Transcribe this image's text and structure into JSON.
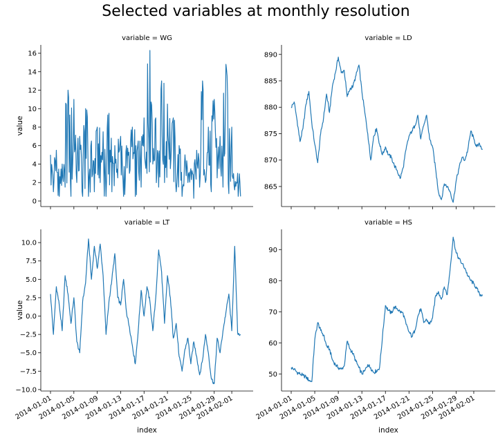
{
  "figure": {
    "title": "Selected variables at monthly resolution"
  },
  "chart_data": [
    {
      "type": "line",
      "title": "variable = WG",
      "xlabel": "",
      "ylabel": "value",
      "x_range": [
        "2014-01-01",
        "2014-02-03"
      ],
      "ylim": [
        -0.6,
        16.9
      ],
      "y_ticks": [
        0,
        2,
        4,
        6,
        8,
        10,
        12,
        14,
        16
      ],
      "y_tick_labels": [
        "0",
        "2",
        "4",
        "6",
        "8",
        "10",
        "12",
        "14",
        "16"
      ],
      "x_tick_labels": [],
      "color": "#1f77b4",
      "x": [
        "2014-01-01",
        "2014-01-01 12:00",
        "2014-01-02",
        "2014-01-02 12:00",
        "2014-01-03",
        "2014-01-03 12:00",
        "2014-01-04",
        "2014-01-04 12:00",
        "2014-01-05",
        "2014-01-05 12:00",
        "2014-01-06",
        "2014-01-06 12:00",
        "2014-01-07",
        "2014-01-07 12:00",
        "2014-01-08",
        "2014-01-08 12:00",
        "2014-01-09",
        "2014-01-09 12:00",
        "2014-01-10",
        "2014-01-10 12:00",
        "2014-01-11",
        "2014-01-11 12:00",
        "2014-01-12",
        "2014-01-12 12:00",
        "2014-01-13",
        "2014-01-13 12:00",
        "2014-01-14",
        "2014-01-14 12:00",
        "2014-01-15",
        "2014-01-15 12:00",
        "2014-01-16",
        "2014-01-16 12:00",
        "2014-01-17",
        "2014-01-17 12:00",
        "2014-01-18",
        "2014-01-18 12:00",
        "2014-01-19",
        "2014-01-19 12:00",
        "2014-01-20",
        "2014-01-20 12:00",
        "2014-01-21",
        "2014-01-21 12:00",
        "2014-01-22",
        "2014-01-22 12:00",
        "2014-01-23",
        "2014-01-23 12:00",
        "2014-01-24",
        "2014-01-24 12:00",
        "2014-01-25",
        "2014-01-25 12:00",
        "2014-01-26",
        "2014-01-26 12:00",
        "2014-01-27",
        "2014-01-27 12:00",
        "2014-01-28",
        "2014-01-28 12:00",
        "2014-01-29",
        "2014-01-29 12:00",
        "2014-01-30",
        "2014-01-30 12:00",
        "2014-01-31",
        "2014-01-31 12:00",
        "2014-02-01",
        "2014-02-01 12:00",
        "2014-02-02",
        "2014-02-02 12:00"
      ],
      "values": [
        5.0,
        1.0,
        5.5,
        0.5,
        4.0,
        1.5,
        12.0,
        0.5,
        11.0,
        2.0,
        7.0,
        0.5,
        10.0,
        0.5,
        6.5,
        1.0,
        8.0,
        2.0,
        7.5,
        0.5,
        9.5,
        1.0,
        6.0,
        2.5,
        7.0,
        0.5,
        6.0,
        3.0,
        8.0,
        0.5,
        6.5,
        1.5,
        9.0,
        3.0,
        16.3,
        4.0,
        9.0,
        1.5,
        13.0,
        2.0,
        10.5,
        3.5,
        9.0,
        1.0,
        6.0,
        0.5,
        5.0,
        2.0,
        3.5,
        0.3,
        5.5,
        1.5,
        13.0,
        2.0,
        8.0,
        1.0,
        11.0,
        2.5,
        7.0,
        1.5,
        14.8,
        0.8,
        8.0,
        1.2,
        3.0,
        0.5
      ]
    },
    {
      "type": "line",
      "title": "variable = LD",
      "xlabel": "",
      "ylabel": "",
      "x_range": [
        "2014-01-01",
        "2014-02-03"
      ],
      "ylim": [
        861.2,
        891.8
      ],
      "y_ticks": [
        865,
        870,
        875,
        880,
        885,
        890
      ],
      "y_tick_labels": [
        "865",
        "870",
        "875",
        "880",
        "885",
        "890"
      ],
      "x_tick_labels": [],
      "color": "#1f77b4",
      "x": [
        "2014-01-01",
        "2014-01-01 12:00",
        "2014-01-02",
        "2014-01-02 12:00",
        "2014-01-03",
        "2014-01-03 12:00",
        "2014-01-04",
        "2014-01-04 12:00",
        "2014-01-05",
        "2014-01-05 12:00",
        "2014-01-06",
        "2014-01-06 12:00",
        "2014-01-07",
        "2014-01-07 12:00",
        "2014-01-08",
        "2014-01-08 12:00",
        "2014-01-09",
        "2014-01-09 12:00",
        "2014-01-10",
        "2014-01-10 12:00",
        "2014-01-11",
        "2014-01-11 12:00",
        "2014-01-12",
        "2014-01-12 12:00",
        "2014-01-13",
        "2014-01-13 12:00",
        "2014-01-14",
        "2014-01-14 12:00",
        "2014-01-15",
        "2014-01-15 12:00",
        "2014-01-16",
        "2014-01-16 12:00",
        "2014-01-17",
        "2014-01-17 12:00",
        "2014-01-18",
        "2014-01-18 12:00",
        "2014-01-19",
        "2014-01-19 12:00",
        "2014-01-20",
        "2014-01-20 12:00",
        "2014-01-21",
        "2014-01-21 12:00",
        "2014-01-22",
        "2014-01-22 12:00",
        "2014-01-23",
        "2014-01-23 12:00",
        "2014-01-24",
        "2014-01-24 12:00",
        "2014-01-25",
        "2014-01-25 12:00",
        "2014-01-26",
        "2014-01-26 12:00",
        "2014-01-27",
        "2014-01-27 12:00",
        "2014-01-28",
        "2014-01-28 12:00",
        "2014-01-29",
        "2014-01-29 12:00",
        "2014-01-30",
        "2014-01-30 12:00",
        "2014-01-31",
        "2014-01-31 12:00",
        "2014-02-01",
        "2014-02-01 12:00",
        "2014-02-02",
        "2014-02-02 12:00"
      ],
      "values": [
        880.0,
        881.0,
        877.5,
        873.5,
        876.0,
        880.5,
        883.0,
        877.0,
        873.0,
        869.5,
        875.0,
        878.0,
        882.5,
        879.0,
        884.0,
        886.5,
        889.5,
        886.5,
        887.0,
        882.0,
        883.5,
        884.0,
        886.0,
        888.0,
        883.0,
        879.0,
        875.0,
        870.0,
        874.5,
        876.0,
        873.0,
        871.0,
        872.5,
        871.0,
        870.5,
        869.0,
        868.0,
        866.5,
        868.5,
        872.0,
        874.5,
        875.5,
        876.5,
        878.5,
        874.0,
        876.5,
        878.5,
        874.0,
        872.5,
        868.5,
        864.0,
        862.5,
        865.5,
        865.0,
        864.0,
        862.0,
        866.0,
        868.5,
        870.5,
        870.0,
        872.0,
        875.5,
        874.0,
        872.5,
        873.0,
        872.0
      ]
    },
    {
      "type": "line",
      "title": "variable = LT",
      "xlabel": "index",
      "ylabel": "value",
      "x_range": [
        "2014-01-01",
        "2014-02-03"
      ],
      "ylim": [
        -10.2,
        11.8
      ],
      "y_ticks": [
        -10.0,
        -7.5,
        -5.0,
        -2.5,
        0.0,
        2.5,
        5.0,
        7.5,
        10.0
      ],
      "y_tick_labels": [
        "−10.0",
        "−7.5",
        "−5.0",
        "−2.5",
        "0.0",
        "2.5",
        "5.0",
        "7.5",
        "10.0"
      ],
      "x_ticks": [
        "2014-01-01",
        "2014-01-05",
        "2014-01-09",
        "2014-01-13",
        "2014-01-17",
        "2014-01-21",
        "2014-01-25",
        "2014-01-29",
        "2014-02-01"
      ],
      "x_tick_labels": [
        "2014-01-01",
        "2014-01-05",
        "2014-01-09",
        "2014-01-13",
        "2014-01-17",
        "2014-01-21",
        "2014-01-25",
        "2014-01-29",
        "2014-02-01"
      ],
      "color": "#1f77b4",
      "x": [
        "2014-01-01",
        "2014-01-01 12:00",
        "2014-01-02",
        "2014-01-02 12:00",
        "2014-01-03",
        "2014-01-03 12:00",
        "2014-01-04",
        "2014-01-04 12:00",
        "2014-01-05",
        "2014-01-05 12:00",
        "2014-01-06",
        "2014-01-06 12:00",
        "2014-01-07",
        "2014-01-07 12:00",
        "2014-01-08",
        "2014-01-08 12:00",
        "2014-01-09",
        "2014-01-09 12:00",
        "2014-01-10",
        "2014-01-10 12:00",
        "2014-01-11",
        "2014-01-11 12:00",
        "2014-01-12",
        "2014-01-12 12:00",
        "2014-01-13",
        "2014-01-13 12:00",
        "2014-01-14",
        "2014-01-14 12:00",
        "2014-01-15",
        "2014-01-15 12:00",
        "2014-01-16",
        "2014-01-16 12:00",
        "2014-01-17",
        "2014-01-17 12:00",
        "2014-01-18",
        "2014-01-18 12:00",
        "2014-01-19",
        "2014-01-19 12:00",
        "2014-01-20",
        "2014-01-20 12:00",
        "2014-01-21",
        "2014-01-21 12:00",
        "2014-01-22",
        "2014-01-22 12:00",
        "2014-01-23",
        "2014-01-23 12:00",
        "2014-01-24",
        "2014-01-24 12:00",
        "2014-01-25",
        "2014-01-25 12:00",
        "2014-01-26",
        "2014-01-26 12:00",
        "2014-01-27",
        "2014-01-27 12:00",
        "2014-01-28",
        "2014-01-28 12:00",
        "2014-01-29",
        "2014-01-29 12:00",
        "2014-01-30",
        "2014-01-30 12:00",
        "2014-01-31",
        "2014-01-31 12:00",
        "2014-02-01",
        "2014-02-01 12:00",
        "2014-02-02",
        "2014-02-02 12:00"
      ],
      "values": [
        3.0,
        -2.5,
        4.0,
        1.5,
        -2.0,
        5.5,
        3.0,
        -1.0,
        2.5,
        -3.5,
        -5.0,
        2.0,
        4.5,
        10.5,
        5.0,
        9.5,
        6.5,
        9.8,
        5.5,
        -2.5,
        2.0,
        5.0,
        8.5,
        2.5,
        1.5,
        5.0,
        0.5,
        -1.5,
        -4.0,
        -6.5,
        -2.0,
        3.5,
        0.0,
        4.0,
        2.0,
        -2.0,
        2.5,
        9.0,
        6.0,
        -1.0,
        5.5,
        2.5,
        -3.0,
        -1.0,
        -5.5,
        -7.5,
        -4.5,
        -3.0,
        -6.5,
        -3.5,
        -5.5,
        -8.0,
        -6.0,
        -2.5,
        -5.0,
        -8.5,
        -9.2,
        -3.0,
        -5.0,
        -2.0,
        0.5,
        3.0,
        -2.0,
        9.5,
        -2.3,
        -2.5
      ]
    },
    {
      "type": "line",
      "title": "variable = HS",
      "xlabel": "index",
      "ylabel": "",
      "x_range": [
        "2014-01-01",
        "2014-02-03"
      ],
      "ylim": [
        44.5,
        96.5
      ],
      "y_ticks": [
        50,
        60,
        70,
        80,
        90
      ],
      "y_tick_labels": [
        "50",
        "60",
        "70",
        "80",
        "90"
      ],
      "x_ticks": [
        "2014-01-01",
        "2014-01-05",
        "2014-01-09",
        "2014-01-13",
        "2014-01-17",
        "2014-01-21",
        "2014-01-25",
        "2014-01-29",
        "2014-02-01"
      ],
      "x_tick_labels": [
        "2014-01-01",
        "2014-01-05",
        "2014-01-09",
        "2014-01-13",
        "2014-01-17",
        "2014-01-21",
        "2014-01-25",
        "2014-01-29",
        "2014-02-01"
      ],
      "color": "#1f77b4",
      "x": [
        "2014-01-01",
        "2014-01-01 12:00",
        "2014-01-02",
        "2014-01-02 12:00",
        "2014-01-03",
        "2014-01-03 12:00",
        "2014-01-04",
        "2014-01-04 12:00",
        "2014-01-05",
        "2014-01-05 12:00",
        "2014-01-06",
        "2014-01-06 12:00",
        "2014-01-07",
        "2014-01-07 12:00",
        "2014-01-08",
        "2014-01-08 12:00",
        "2014-01-09",
        "2014-01-09 12:00",
        "2014-01-10",
        "2014-01-10 12:00",
        "2014-01-11",
        "2014-01-11 12:00",
        "2014-01-12",
        "2014-01-12 12:00",
        "2014-01-13",
        "2014-01-13 12:00",
        "2014-01-14",
        "2014-01-14 12:00",
        "2014-01-15",
        "2014-01-15 12:00",
        "2014-01-16",
        "2014-01-16 12:00",
        "2014-01-17",
        "2014-01-17 12:00",
        "2014-01-18",
        "2014-01-18 12:00",
        "2014-01-19",
        "2014-01-19 12:00",
        "2014-01-20",
        "2014-01-20 12:00",
        "2014-01-21",
        "2014-01-21 12:00",
        "2014-01-22",
        "2014-01-22 12:00",
        "2014-01-23",
        "2014-01-23 12:00",
        "2014-01-24",
        "2014-01-24 12:00",
        "2014-01-25",
        "2014-01-25 12:00",
        "2014-01-26",
        "2014-01-26 12:00",
        "2014-01-27",
        "2014-01-27 12:00",
        "2014-01-28",
        "2014-01-28 12:00",
        "2014-01-29",
        "2014-01-29 12:00",
        "2014-01-30",
        "2014-01-30 12:00",
        "2014-01-31",
        "2014-01-31 12:00",
        "2014-02-01",
        "2014-02-01 12:00",
        "2014-02-02",
        "2014-02-02 12:00"
      ],
      "values": [
        52.0,
        51.5,
        50.5,
        50.0,
        49.5,
        49.0,
        48.0,
        47.5,
        61.0,
        66.5,
        64.0,
        62.5,
        59.0,
        58.0,
        54.5,
        53.0,
        52.0,
        51.5,
        52.5,
        60.5,
        58.0,
        56.5,
        54.0,
        52.0,
        50.0,
        51.0,
        53.0,
        52.0,
        50.5,
        51.0,
        52.0,
        62.0,
        72.0,
        70.5,
        69.5,
        71.5,
        71.0,
        70.0,
        69.5,
        66.0,
        63.5,
        62.0,
        64.0,
        68.5,
        71.0,
        66.5,
        67.5,
        66.0,
        68.0,
        75.0,
        76.5,
        74.0,
        78.0,
        75.5,
        84.0,
        94.0,
        89.0,
        87.0,
        85.5,
        84.0,
        81.5,
        80.0,
        79.0,
        77.5,
        75.5,
        75.5
      ]
    }
  ]
}
